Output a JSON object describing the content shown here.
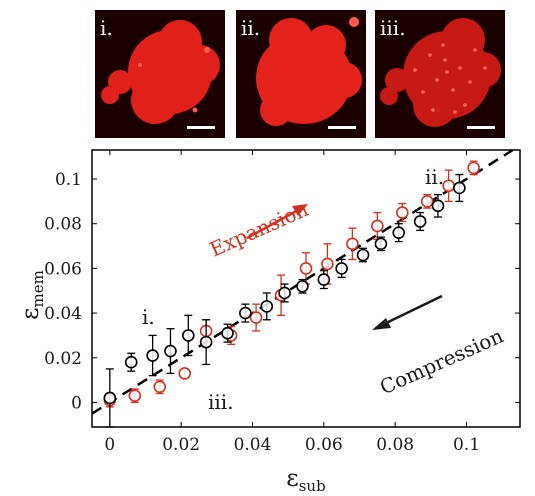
{
  "panels": [
    {
      "label": "i."
    },
    {
      "label": "ii."
    },
    {
      "label": "iii."
    }
  ],
  "chart_data": {
    "type": "scatter",
    "xlabel": "ε",
    "xlabel_sub": "sub",
    "ylabel": "ε",
    "ylabel_sub": "mem",
    "xlim": [
      -0.005,
      0.115
    ],
    "ylim": [
      -0.011,
      0.113
    ],
    "xticks": [
      "0",
      "0.02",
      "0.04",
      "0.06",
      "0.08",
      "0.1"
    ],
    "yticks": [
      "0",
      "0.02",
      "0.04",
      "0.06",
      "0.08",
      "0.1"
    ],
    "fit_line": {
      "style": "dashed",
      "color": "#000000",
      "slope": 1.0,
      "intercept": 0
    },
    "series": [
      {
        "color": "#d7301f",
        "points": [
          {
            "x": 0.0,
            "y": 0.001,
            "err": 0.003
          },
          {
            "x": 0.007,
            "y": 0.003,
            "err": 0.003
          },
          {
            "x": 0.014,
            "y": 0.007,
            "err": 0.003
          },
          {
            "x": 0.021,
            "y": 0.013,
            "err": 0.002
          },
          {
            "x": 0.027,
            "y": 0.032,
            "err": 0.005
          },
          {
            "x": 0.034,
            "y": 0.03,
            "err": 0.004
          },
          {
            "x": 0.041,
            "y": 0.038,
            "err": 0.006
          },
          {
            "x": 0.048,
            "y": 0.048,
            "err": 0.009
          },
          {
            "x": 0.055,
            "y": 0.06,
            "err": 0.007
          },
          {
            "x": 0.061,
            "y": 0.062,
            "err": 0.009
          },
          {
            "x": 0.068,
            "y": 0.071,
            "err": 0.007
          },
          {
            "x": 0.075,
            "y": 0.079,
            "err": 0.006
          },
          {
            "x": 0.082,
            "y": 0.085,
            "err": 0.004
          },
          {
            "x": 0.089,
            "y": 0.09,
            "err": 0.003
          },
          {
            "x": 0.095,
            "y": 0.097,
            "err": 0.007
          },
          {
            "x": 0.102,
            "y": 0.105,
            "err": 0.003
          }
        ]
      },
      {
        "color": "#000000",
        "points": [
          {
            "x": 0.0,
            "y": 0.002,
            "err": 0.013
          },
          {
            "x": 0.006,
            "y": 0.018,
            "err": 0.004
          },
          {
            "x": 0.012,
            "y": 0.021,
            "err": 0.009
          },
          {
            "x": 0.017,
            "y": 0.023,
            "err": 0.01
          },
          {
            "x": 0.022,
            "y": 0.03,
            "err": 0.009
          },
          {
            "x": 0.027,
            "y": 0.027,
            "err": 0.01
          },
          {
            "x": 0.033,
            "y": 0.031,
            "err": 0.004
          },
          {
            "x": 0.038,
            "y": 0.04,
            "err": 0.004
          },
          {
            "x": 0.044,
            "y": 0.043,
            "err": 0.006
          },
          {
            "x": 0.049,
            "y": 0.049,
            "err": 0.004
          },
          {
            "x": 0.054,
            "y": 0.052,
            "err": 0.003
          },
          {
            "x": 0.06,
            "y": 0.055,
            "err": 0.004
          },
          {
            "x": 0.065,
            "y": 0.06,
            "err": 0.004
          },
          {
            "x": 0.071,
            "y": 0.066,
            "err": 0.003
          },
          {
            "x": 0.076,
            "y": 0.071,
            "err": 0.003
          },
          {
            "x": 0.081,
            "y": 0.076,
            "err": 0.004
          },
          {
            "x": 0.087,
            "y": 0.081,
            "err": 0.004
          },
          {
            "x": 0.092,
            "y": 0.088,
            "err": 0.005
          },
          {
            "x": 0.098,
            "y": 0.096,
            "err": 0.006
          }
        ]
      }
    ],
    "annotations": [
      {
        "text": "Expansion",
        "color": "#d7301f"
      },
      {
        "text": "Compression",
        "color": "#1a1a1a"
      },
      {
        "text": "i.",
        "color": "#1a1a1a"
      },
      {
        "text": "ii.",
        "color": "#1a1a1a"
      },
      {
        "text": "iii.",
        "color": "#1a1a1a"
      }
    ]
  }
}
